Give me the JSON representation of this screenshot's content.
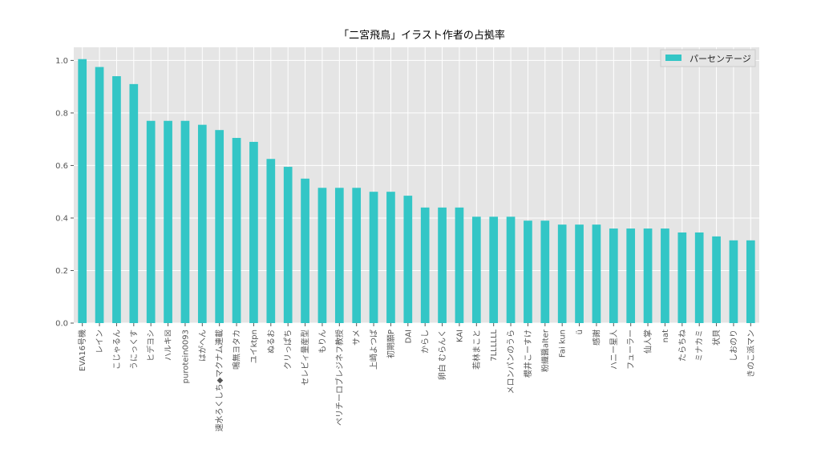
{
  "chart_data": {
    "type": "bar",
    "title": "「二宮飛鳥」イラスト作者の占拠率",
    "xlabel": "",
    "ylabel": "",
    "ylim": [
      0,
      1.05
    ],
    "yticks": [
      "0.0",
      "0.2",
      "0.4",
      "0.6",
      "0.8",
      "1.0"
    ],
    "grid": true,
    "legend_position": "top-right",
    "bar_color": "#33c6c6",
    "background_color": "#e5e5e5",
    "categories": [
      "EVA16号機",
      "レイン",
      "こじゃるん",
      "うにっくす",
      "ヒデヨシ",
      "ハルキ☒",
      "purotein0093",
      "はがへん",
      "速水ろくしち◆マクナム連載",
      "鳴無ヨタカ",
      "ユイktpn",
      "ぬるお",
      "クリっぱち",
      "セレビィ量産型",
      "もりん",
      "ペリチーロブレジネフ教授",
      "サメ",
      "上崎よつば",
      "初期願P",
      "DAI",
      "からし",
      "卵白 むらんく",
      "KAI",
      "若林まこと",
      "7LLLLLL",
      "メロンパンのうら",
      "櫻井こーすけ",
      "粉織醤alter",
      "Fai kun",
      "ü",
      "感謝",
      "ハニー星人",
      "フューラー",
      "仙人掌",
      "nat",
      "たらちね",
      "ミナカミ",
      "状貝",
      "しおのり",
      "きのこ派マン"
    ],
    "series": [
      {
        "name": "パーセンテージ",
        "values": [
          1.005,
          0.975,
          0.94,
          0.91,
          0.77,
          0.77,
          0.77,
          0.755,
          0.735,
          0.705,
          0.69,
          0.625,
          0.595,
          0.55,
          0.515,
          0.515,
          0.515,
          0.5,
          0.5,
          0.485,
          0.44,
          0.44,
          0.44,
          0.405,
          0.405,
          0.405,
          0.39,
          0.39,
          0.375,
          0.375,
          0.375,
          0.36,
          0.36,
          0.36,
          0.36,
          0.345,
          0.345,
          0.33,
          0.315,
          0.315
        ]
      }
    ]
  }
}
